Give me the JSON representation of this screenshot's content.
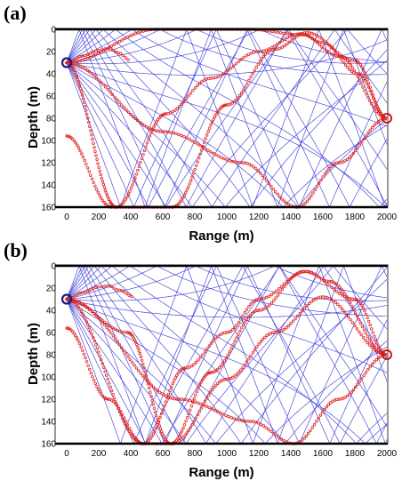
{
  "figure": {
    "panels": [
      {
        "label": "(a)",
        "xlabel": "Range (m)",
        "ylabel": "Depth (m)"
      },
      {
        "label": "(b)",
        "xlabel": "Range (m)",
        "ylabel": "Depth (m)"
      }
    ]
  },
  "chart_data": [
    {
      "type": "line",
      "panel_label": "(a)",
      "xlabel": "Range (m)",
      "ylabel": "Depth (m)",
      "xlim": [
        0,
        2000
      ],
      "ylim": [
        160,
        0
      ],
      "y_reversed": true,
      "xticks": [
        0,
        200,
        400,
        600,
        800,
        1000,
        1200,
        1400,
        1600,
        1800,
        2000
      ],
      "yticks": [
        0,
        20,
        40,
        60,
        80,
        100,
        120,
        140,
        160
      ],
      "source": {
        "range": 0,
        "depth": 30
      },
      "receiver": {
        "range": 2000,
        "depth": 80
      },
      "ray_fan": {
        "color": "#3a3ad8",
        "launch_angles_deg": [
          -21,
          -17,
          -14,
          -11.5,
          -9,
          -7,
          -5,
          -3.4,
          -1.8,
          -0.6,
          0.6,
          1.8,
          3.4,
          5,
          7,
          9,
          11.5,
          14,
          17,
          21
        ],
        "curvature": 0.018
      },
      "eigenrays": [
        {
          "color": "#e02020",
          "style": "circles",
          "points": [
            [
              0,
              30
            ],
            [
              100,
              24
            ],
            [
              200,
              19
            ],
            [
              260,
              17
            ],
            [
              320,
              21
            ],
            [
              400,
              28
            ]
          ]
        },
        {
          "color": "#e02020",
          "style": "circles",
          "points": [
            [
              0,
              30
            ],
            [
              310,
              160
            ],
            [
              620,
              76
            ],
            [
              900,
              44
            ],
            [
              1200,
              20
            ],
            [
              1460,
              4
            ],
            [
              1700,
              24
            ],
            [
              2000,
              80
            ]
          ]
        },
        {
          "color": "#e02020",
          "style": "circles",
          "points": [
            [
              0,
              30
            ],
            [
              560,
              0
            ],
            [
              1140,
              0
            ],
            [
              1480,
              5
            ],
            [
              1600,
              12
            ],
            [
              1820,
              40
            ],
            [
              2000,
              80
            ]
          ]
        },
        {
          "color": "#e02020",
          "style": "circles",
          "points": [
            [
              0,
              96
            ],
            [
              280,
              160
            ],
            [
              660,
              160
            ],
            [
              1000,
              68
            ],
            [
              1300,
              18
            ],
            [
              1500,
              3
            ],
            [
              1800,
              28
            ],
            [
              2000,
              80
            ]
          ]
        },
        {
          "color": "#e02020",
          "style": "circles",
          "points": [
            [
              0,
              30
            ],
            [
              600,
              92
            ],
            [
              1100,
              120
            ],
            [
              1440,
              160
            ],
            [
              1700,
              120
            ],
            [
              2000,
              80
            ]
          ]
        }
      ]
    },
    {
      "type": "line",
      "panel_label": "(b)",
      "xlabel": "Range (m)",
      "ylabel": "Depth (m)",
      "xlim": [
        0,
        2000
      ],
      "ylim": [
        160,
        0
      ],
      "y_reversed": true,
      "xticks": [
        0,
        200,
        400,
        600,
        800,
        1000,
        1200,
        1400,
        1600,
        1800,
        2000
      ],
      "yticks": [
        0,
        20,
        40,
        60,
        80,
        100,
        120,
        140,
        160
      ],
      "source": {
        "range": 0,
        "depth": 30
      },
      "receiver": {
        "range": 2000,
        "depth": 80
      },
      "ray_fan": {
        "color": "#3a3ad8",
        "launch_angles_deg": [
          -21,
          -17,
          -14.5,
          -12,
          -9.5,
          -7.5,
          -5.5,
          -3.6,
          -2,
          -0.7,
          0.7,
          2,
          3.6,
          5.5,
          7.5,
          9.5,
          12,
          14.5,
          17,
          21
        ],
        "curvature": 0.017
      },
      "eigenrays": [
        {
          "color": "#e02020",
          "style": "circles",
          "points": [
            [
              0,
              30
            ],
            [
              100,
              24
            ],
            [
              200,
              19
            ],
            [
              260,
              18
            ],
            [
              330,
              22
            ],
            [
              420,
              28
            ]
          ]
        },
        {
          "color": "#e02020",
          "style": "circles",
          "points": [
            [
              0,
              30
            ],
            [
              480,
              160
            ],
            [
              740,
              92
            ],
            [
              1000,
              60
            ],
            [
              1200,
              30
            ],
            [
              1500,
              5
            ],
            [
              1640,
              14
            ],
            [
              2000,
              80
            ]
          ]
        },
        {
          "color": "#e02020",
          "style": "circles",
          "points": [
            [
              0,
              30
            ],
            [
              380,
              60
            ],
            [
              650,
              160
            ],
            [
              900,
              96
            ],
            [
              1200,
              40
            ],
            [
              1480,
              5
            ],
            [
              1800,
              30
            ],
            [
              2000,
              80
            ]
          ]
        },
        {
          "color": "#e02020",
          "style": "circles",
          "points": [
            [
              0,
              56
            ],
            [
              260,
              120
            ],
            [
              480,
              160
            ],
            [
              660,
              160
            ],
            [
              1000,
              102
            ],
            [
              1300,
              60
            ],
            [
              1600,
              28
            ],
            [
              2000,
              80
            ]
          ]
        },
        {
          "color": "#e02020",
          "style": "circles",
          "points": [
            [
              0,
              30
            ],
            [
              700,
              120
            ],
            [
              1150,
              140
            ],
            [
              1420,
              160
            ],
            [
              1700,
              120
            ],
            [
              2000,
              80
            ]
          ]
        }
      ]
    }
  ]
}
